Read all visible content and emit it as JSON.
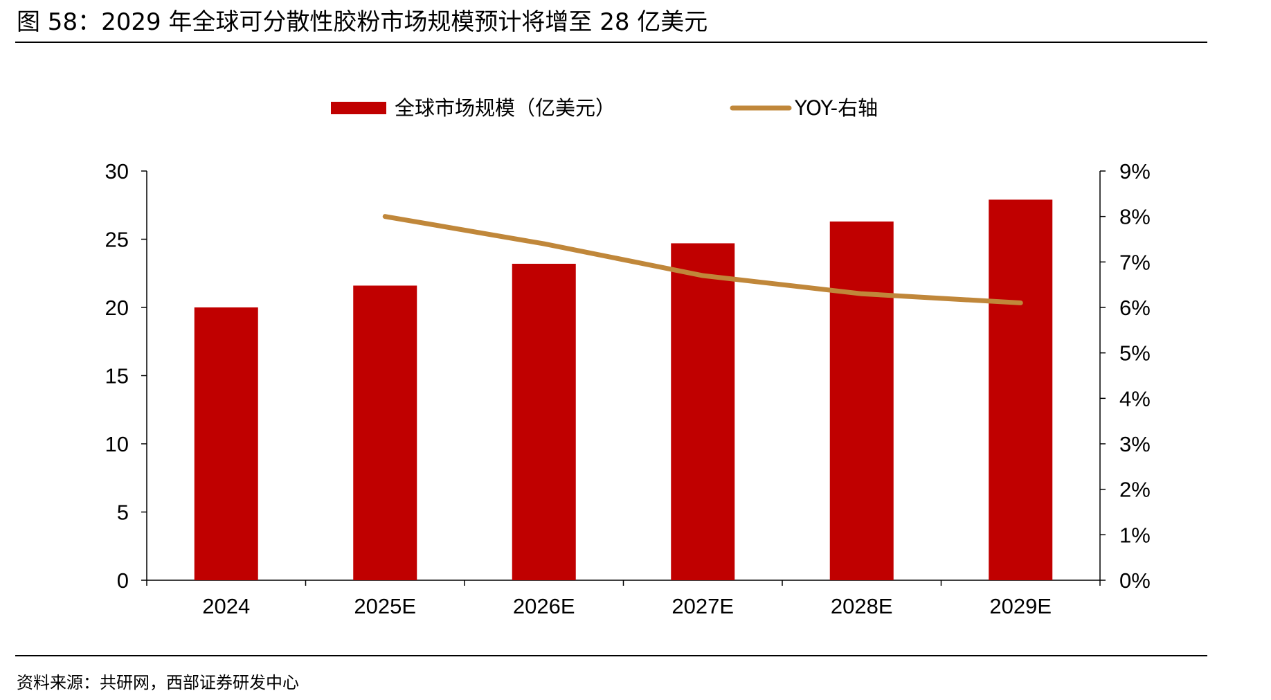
{
  "title": "图 58：2029 年全球可分散性胶粉市场规模预计将增至 28 亿美元",
  "source": "资料来源：共研网，西部证券研发中心",
  "chart_data": {
    "type": "bar",
    "categories": [
      "2024",
      "2025E",
      "2026E",
      "2027E",
      "2028E",
      "2029E"
    ],
    "series": [
      {
        "name": "全球市场规模（亿美元）",
        "type": "bar",
        "axis": "left",
        "color": "#C00000",
        "values": [
          20.0,
          21.6,
          23.2,
          24.7,
          26.3,
          27.9
        ]
      },
      {
        "name": "YOY-右轴",
        "type": "line",
        "axis": "right",
        "color": "#C0873A",
        "values": [
          null,
          8.0,
          7.4,
          6.7,
          6.3,
          6.1
        ]
      }
    ],
    "y_left": {
      "ticks": [
        "0",
        "5",
        "10",
        "15",
        "20",
        "25",
        "30"
      ],
      "min": 0,
      "max": 30
    },
    "y_right": {
      "ticks": [
        "0%",
        "1%",
        "2%",
        "3%",
        "4%",
        "5%",
        "6%",
        "7%",
        "8%",
        "9%"
      ],
      "min": 0,
      "max": 9
    },
    "legend_position": "top-center",
    "grid": false
  }
}
